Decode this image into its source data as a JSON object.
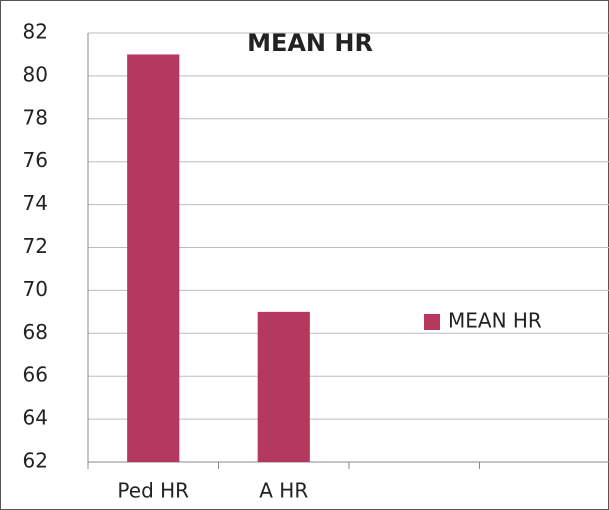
{
  "chart_data": {
    "type": "bar",
    "title": "MEAN HR",
    "categories": [
      "Ped HR",
      "A HR",
      null,
      null
    ],
    "series": [
      {
        "name": "MEAN HR",
        "color": "#b5395f",
        "values": [
          81,
          69,
          null,
          null
        ]
      }
    ],
    "ylim": [
      62,
      82
    ],
    "yticks": [
      62,
      64,
      66,
      68,
      70,
      72,
      74,
      76,
      78,
      80,
      82
    ],
    "grid": true,
    "legend": "right"
  }
}
